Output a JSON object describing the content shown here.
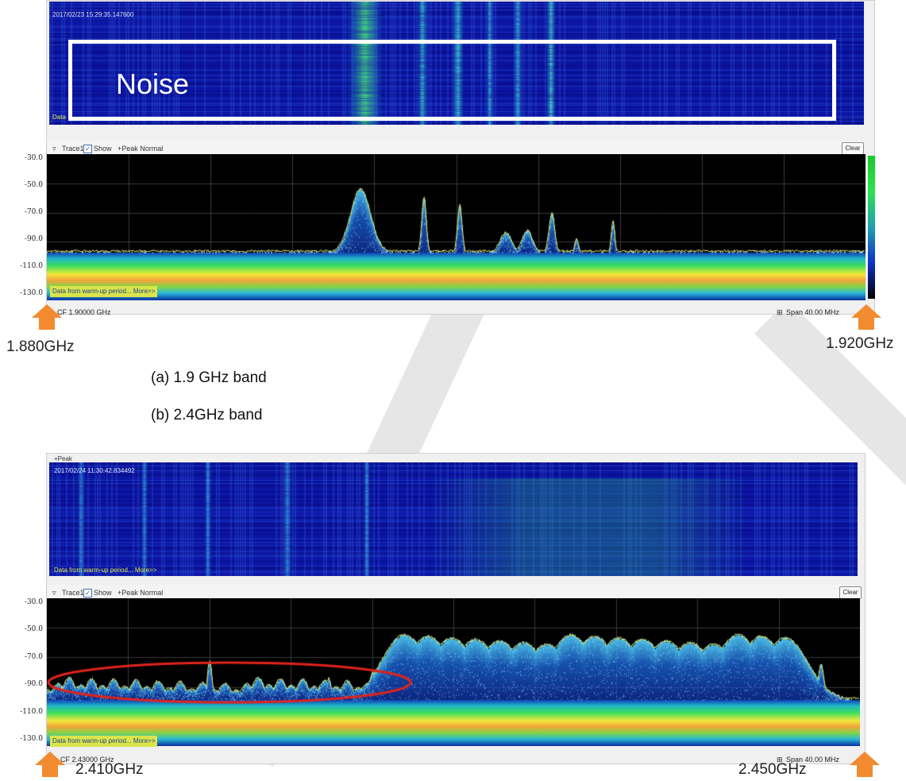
{
  "watermark": {
    "color": "#c8c8c8"
  },
  "panel_a": {
    "timestamp": "2017/02/23 15:29:35.147600",
    "overlay_label": "Noise",
    "waterfall_footer": "Data",
    "trace_header": {
      "trace_label": "Trace1",
      "show_label": "Show",
      "mode_label": "+Peak Normal",
      "clear_label": "Clear"
    },
    "y_ticks": [
      "-30.0",
      "-50.0",
      "-70.0",
      "-90.0",
      "-110.0",
      "-130.0"
    ],
    "status_text": "Data from warm-up period... More>>",
    "cf_label": "CF 1.90000 GHz",
    "span_label": "Span 40.00 MHz",
    "left_freq": "1.880GHz",
    "right_freq": "1.920GHz"
  },
  "captions": {
    "a": "(a)  1.9 GHz band",
    "b": "(b)   2.4GHz band"
  },
  "panel_b": {
    "peak_label": "+Peak",
    "timestamp": "2017/02/24 11:30:42.834492",
    "waterfall_footer": "Data from warm-up period... More>>",
    "trace_header": {
      "trace_label": "Trace1",
      "show_label": "Show",
      "mode_label": "+Peak Normal",
      "clear_label": "Clear"
    },
    "y_ticks": [
      "-30.0",
      "-50.0",
      "-70.0",
      "-90.0",
      "-110.0",
      "-130.0"
    ],
    "status_text": "Data from warm-up period... More>>",
    "cf_label": "CF 2.43000 GHz",
    "span_label": "Span 40.00 MHz",
    "left_freq": "2.410GHz",
    "right_freq": "2.450GHz"
  },
  "colors": {
    "arrow": "#f28b30",
    "waterfall_bg": "#0a0f8c",
    "ellipse": "#e0231c",
    "status_bg": "#d9e54a"
  }
}
